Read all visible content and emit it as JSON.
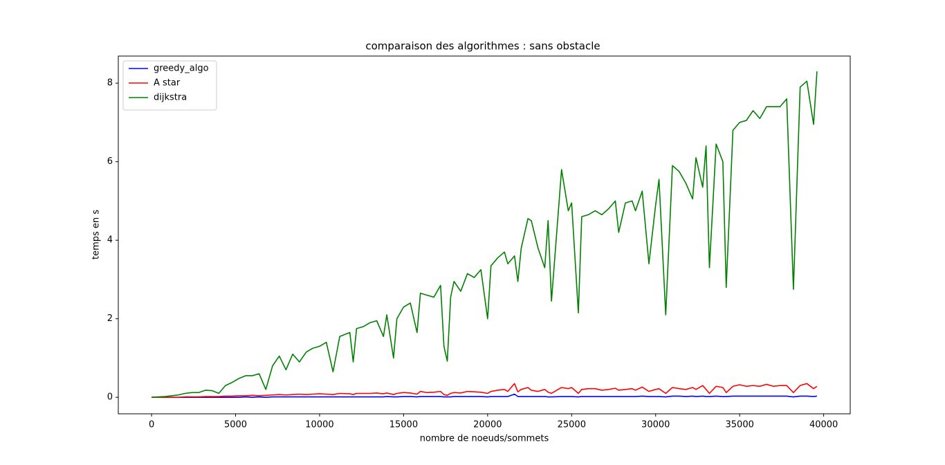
{
  "chart_data": {
    "type": "line",
    "title": "comparaison des algorithmes : sans obstacle",
    "xlabel": "nombre de noeuds/sommets",
    "ylabel": "temps en s",
    "xlim": [
      -1980,
      41580
    ],
    "ylim": [
      -0.42,
      8.69
    ],
    "xticks": [
      0,
      5000,
      10000,
      15000,
      20000,
      25000,
      30000,
      35000,
      40000
    ],
    "yticks": [
      0,
      2,
      4,
      6,
      8
    ],
    "legend": "upper left",
    "grid": false,
    "x": [
      0,
      400,
      800,
      1200,
      1600,
      2000,
      2400,
      2800,
      3200,
      3600,
      4000,
      4400,
      4800,
      5200,
      5600,
      6000,
      6400,
      6800,
      7200,
      7600,
      8000,
      8400,
      8800,
      9200,
      9600,
      10000,
      10400,
      10800,
      11200,
      11800,
      12000,
      12200,
      12600,
      13000,
      13400,
      13800,
      14000,
      14400,
      14600,
      15000,
      15400,
      15800,
      16000,
      16400,
      16800,
      17200,
      17400,
      17600,
      17800,
      18000,
      18400,
      18800,
      19200,
      19600,
      20000,
      20200,
      20600,
      21000,
      21200,
      21600,
      21800,
      22000,
      22400,
      22600,
      23000,
      23400,
      23600,
      23800,
      24400,
      24800,
      25000,
      25400,
      25600,
      26000,
      26400,
      26800,
      27200,
      27600,
      27800,
      28200,
      28600,
      28800,
      29200,
      29600,
      30000,
      30200,
      30600,
      31000,
      31400,
      31800,
      32200,
      32400,
      32800,
      33000,
      33200,
      33600,
      34000,
      34200,
      34600,
      35000,
      35400,
      35800,
      36200,
      36600,
      37000,
      37400,
      37800,
      38200,
      38600,
      39000,
      39400,
      39600
    ],
    "series": [
      {
        "name": "greedy_algo",
        "color": "#0000ff",
        "values": [
          0,
          0,
          0,
          0,
          0,
          0,
          0,
          0,
          0,
          0,
          0,
          0,
          0,
          0,
          0.01,
          0,
          0.01,
          0,
          0.01,
          0.01,
          0.01,
          0.01,
          0.01,
          0.01,
          0.01,
          0.01,
          0.01,
          0.01,
          0.01,
          0.01,
          0.01,
          0.01,
          0.01,
          0.01,
          0.01,
          0.01,
          0.02,
          0.01,
          0.01,
          0.02,
          0.02,
          0.01,
          0.02,
          0.02,
          0.02,
          0.02,
          0.01,
          0.01,
          0.01,
          0.02,
          0.02,
          0.02,
          0.02,
          0.02,
          0.01,
          0.02,
          0.02,
          0.02,
          0.02,
          0.08,
          0.02,
          0.02,
          0.02,
          0.02,
          0.02,
          0.02,
          0.01,
          0.01,
          0.02,
          0.02,
          0.02,
          0.01,
          0.02,
          0.02,
          0.02,
          0.02,
          0.02,
          0.02,
          0.02,
          0.02,
          0.02,
          0.02,
          0.03,
          0.02,
          0.02,
          0.02,
          0.01,
          0.03,
          0.03,
          0.02,
          0.03,
          0.02,
          0.03,
          0.02,
          0.02,
          0.03,
          0.02,
          0.02,
          0.03,
          0.03,
          0.03,
          0.03,
          0.03,
          0.03,
          0.03,
          0.03,
          0.03,
          0.01,
          0.03,
          0.03,
          0.02,
          0.03
        ]
      },
      {
        "name": "A star",
        "color": "#ff0000",
        "values": [
          0,
          0,
          0,
          0,
          0,
          0.01,
          0.01,
          0.01,
          0.02,
          0.02,
          0.02,
          0.03,
          0.03,
          0.04,
          0.04,
          0.05,
          0.04,
          0.05,
          0.06,
          0.07,
          0.06,
          0.07,
          0.08,
          0.07,
          0.08,
          0.09,
          0.08,
          0.07,
          0.1,
          0.09,
          0.07,
          0.1,
          0.1,
          0.1,
          0.11,
          0.09,
          0.11,
          0.07,
          0.1,
          0.12,
          0.11,
          0.08,
          0.15,
          0.12,
          0.13,
          0.15,
          0.07,
          0.05,
          0.1,
          0.12,
          0.11,
          0.15,
          0.14,
          0.13,
          0.1,
          0.15,
          0.18,
          0.2,
          0.15,
          0.35,
          0.14,
          0.2,
          0.25,
          0.18,
          0.15,
          0.2,
          0.13,
          0.1,
          0.25,
          0.22,
          0.25,
          0.1,
          0.2,
          0.22,
          0.22,
          0.18,
          0.2,
          0.23,
          0.18,
          0.2,
          0.22,
          0.18,
          0.26,
          0.15,
          0.2,
          0.22,
          0.1,
          0.25,
          0.22,
          0.2,
          0.25,
          0.2,
          0.3,
          0.2,
          0.1,
          0.28,
          0.25,
          0.12,
          0.28,
          0.32,
          0.28,
          0.3,
          0.28,
          0.33,
          0.28,
          0.3,
          0.3,
          0.12,
          0.3,
          0.35,
          0.22,
          0.28
        ]
      },
      {
        "name": "dijkstra",
        "color": "#008000",
        "values": [
          0,
          0.01,
          0.02,
          0.04,
          0.06,
          0.1,
          0.12,
          0.12,
          0.18,
          0.17,
          0.1,
          0.3,
          0.38,
          0.48,
          0.55,
          0.55,
          0.6,
          0.2,
          0.8,
          1.05,
          0.7,
          1.1,
          0.9,
          1.15,
          1.25,
          1.3,
          1.4,
          0.65,
          1.55,
          1.65,
          0.9,
          1.75,
          1.8,
          1.9,
          1.95,
          1.55,
          2.1,
          1.0,
          2.0,
          2.3,
          2.4,
          1.65,
          2.65,
          2.6,
          2.55,
          2.85,
          1.3,
          0.92,
          2.55,
          2.95,
          2.7,
          3.15,
          3.05,
          3.25,
          2.0,
          3.35,
          3.55,
          3.7,
          3.4,
          3.6,
          2.95,
          3.8,
          4.55,
          4.5,
          3.8,
          3.3,
          4.5,
          2.45,
          5.8,
          4.75,
          4.95,
          2.15,
          4.6,
          4.65,
          4.75,
          4.65,
          4.8,
          5.0,
          4.2,
          4.95,
          5.0,
          4.75,
          5.25,
          3.4,
          4.9,
          5.55,
          2.1,
          5.9,
          5.75,
          5.45,
          5.05,
          6.1,
          5.35,
          6.4,
          3.3,
          6.45,
          6.0,
          2.8,
          6.8,
          7.0,
          7.05,
          7.3,
          7.1,
          7.4,
          7.4,
          7.4,
          7.6,
          2.75,
          7.9,
          8.05,
          6.95,
          8.3
        ]
      }
    ]
  }
}
